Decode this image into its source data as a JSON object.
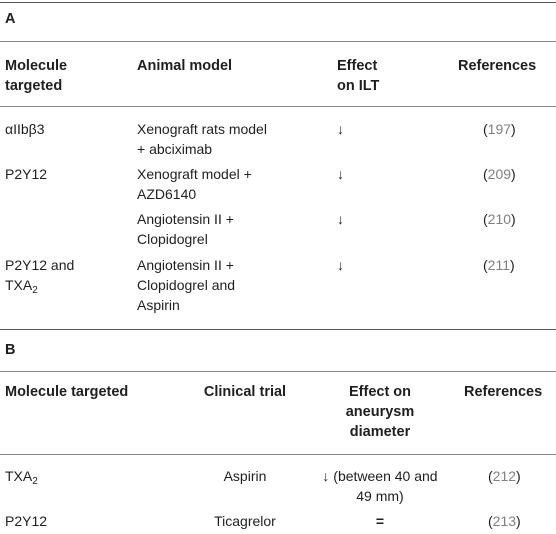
{
  "sectionA": {
    "label": "A",
    "headers": {
      "molecule_l1": "Molecule",
      "molecule_l2": "targeted",
      "model": "Animal model",
      "effect_l1": "Effect",
      "effect_l2": "on ILT",
      "references": "References"
    },
    "rows": [
      {
        "molecule_l1": "αIIbβ3",
        "model_l1": "Xenograft rats model",
        "model_l2": "+ abciximab",
        "effect": "↓",
        "ref_open": "(",
        "ref_num": "197",
        "ref_close": ")"
      },
      {
        "molecule_l1": "P2Y12",
        "model_l1": "Xenograft model +",
        "model_l2": "AZD6140",
        "effect": "↓",
        "ref_open": "(",
        "ref_num": "209",
        "ref_close": ")"
      },
      {
        "molecule_l1": "",
        "model_l1": "Angiotensin II +",
        "model_l2": "Clopidogrel",
        "effect": "↓",
        "ref_open": "(",
        "ref_num": "210",
        "ref_close": ")"
      },
      {
        "molecule_l1": "P2Y12 and",
        "molecule_l2": "TXA",
        "molecule_sub": "2",
        "model_l1": "Angiotensin II +",
        "model_l2": "Clopidogrel and",
        "model_l3": "Aspirin",
        "effect": "↓",
        "ref_open": "(",
        "ref_num": "211",
        "ref_close": ")"
      }
    ]
  },
  "sectionB": {
    "label": "B",
    "headers": {
      "molecule": "Molecule targeted",
      "trial": "Clinical trial",
      "effect_l1": "Effect on",
      "effect_l2": "aneurysm",
      "effect_l3": "diameter",
      "references": "References"
    },
    "rows": [
      {
        "molecule": "TXA",
        "molecule_sub": "2",
        "trial": "Aspirin",
        "effect_l1": "↓ (between 40 and",
        "effect_l2": "49 mm)",
        "ref_open": "(",
        "ref_num": "212",
        "ref_close": ")"
      },
      {
        "molecule": "P2Y12",
        "trial": "Ticagrelor",
        "effect_l1": "=",
        "ref_open": "(",
        "ref_num": "213",
        "ref_close": ")"
      }
    ]
  }
}
